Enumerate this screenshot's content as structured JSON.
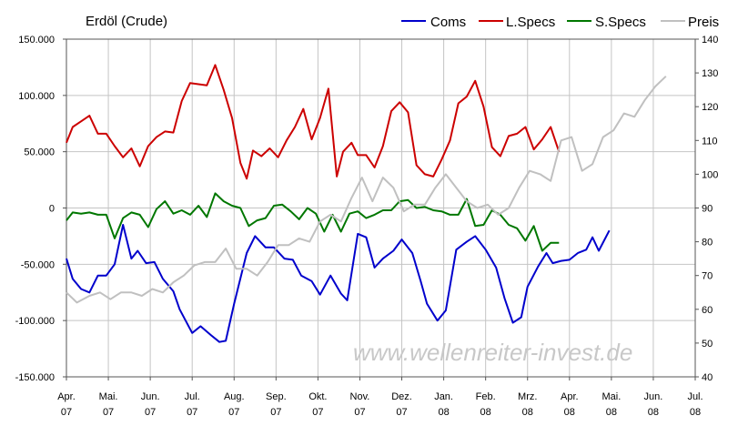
{
  "chart_data": {
    "type": "line",
    "title": "Erdöl (Crude)",
    "watermark": "www.wellenreiter-invest.de",
    "x_labels": [
      {
        "month": "Apr.",
        "year": "07"
      },
      {
        "month": "Mai.",
        "year": "07"
      },
      {
        "month": "Jun.",
        "year": "07"
      },
      {
        "month": "Jul.",
        "year": "07"
      },
      {
        "month": "Aug.",
        "year": "07"
      },
      {
        "month": "Sep.",
        "year": "07"
      },
      {
        "month": "Okt.",
        "year": "07"
      },
      {
        "month": "Nov.",
        "year": "07"
      },
      {
        "month": "Dez.",
        "year": "07"
      },
      {
        "month": "Jan.",
        "year": "08"
      },
      {
        "month": "Feb.",
        "year": "08"
      },
      {
        "month": "Mrz.",
        "year": "08"
      },
      {
        "month": "Apr.",
        "year": "08"
      },
      {
        "month": "Mai.",
        "year": "08"
      },
      {
        "month": "Jun.",
        "year": "08"
      },
      {
        "month": "Jul.",
        "year": "08"
      }
    ],
    "y_left": {
      "min": -150000,
      "max": 150000,
      "ticks": [
        -150000,
        -100000,
        -50000,
        0,
        50000,
        100000,
        150000
      ],
      "tick_labels": [
        "-150.000",
        "-100.000",
        "-50.000",
        "0",
        "50.000",
        "100.000",
        "150.000"
      ]
    },
    "y_right": {
      "min": 40,
      "max": 140,
      "ticks": [
        40,
        50,
        60,
        70,
        80,
        90,
        100,
        110,
        120,
        130,
        140
      ],
      "tick_labels": [
        "40",
        "50",
        "60",
        "70",
        "80",
        "90",
        "100",
        "110",
        "120",
        "130",
        "140"
      ]
    },
    "grid": true,
    "legend_position": "top-right",
    "series": [
      {
        "name": "Coms",
        "color": "#0000cc",
        "axis": "left",
        "values": [
          [
            0.0,
            -45000
          ],
          [
            0.15,
            -63000
          ],
          [
            0.35,
            -72000
          ],
          [
            0.55,
            -75000
          ],
          [
            0.75,
            -60000
          ],
          [
            0.95,
            -60000
          ],
          [
            1.15,
            -50000
          ],
          [
            1.35,
            -15000
          ],
          [
            1.55,
            -45000
          ],
          [
            1.7,
            -38000
          ],
          [
            1.9,
            -49000
          ],
          [
            2.1,
            -48000
          ],
          [
            2.3,
            -63000
          ],
          [
            2.55,
            -74000
          ],
          [
            2.7,
            -90000
          ],
          [
            3.0,
            -111000
          ],
          [
            3.2,
            -105000
          ],
          [
            3.45,
            -113000
          ],
          [
            3.65,
            -119000
          ],
          [
            3.8,
            -118000
          ],
          [
            4.0,
            -85000
          ],
          [
            4.3,
            -40000
          ],
          [
            4.5,
            -25000
          ],
          [
            4.75,
            -35000
          ],
          [
            4.95,
            -35000
          ],
          [
            5.2,
            -45000
          ],
          [
            5.4,
            -46000
          ],
          [
            5.6,
            -60000
          ],
          [
            5.85,
            -65000
          ],
          [
            6.05,
            -77000
          ],
          [
            6.3,
            -60000
          ],
          [
            6.55,
            -76000
          ],
          [
            6.7,
            -82000
          ],
          [
            6.95,
            -23000
          ],
          [
            7.15,
            -26000
          ],
          [
            7.35,
            -53000
          ],
          [
            7.55,
            -45000
          ],
          [
            7.8,
            -38000
          ],
          [
            8.0,
            -28000
          ],
          [
            8.25,
            -40000
          ],
          [
            8.45,
            -65000
          ],
          [
            8.6,
            -85000
          ],
          [
            8.85,
            -100000
          ],
          [
            9.05,
            -91000
          ],
          [
            9.3,
            -37000
          ],
          [
            9.55,
            -30000
          ],
          [
            9.75,
            -25000
          ],
          [
            10.0,
            -37000
          ],
          [
            10.25,
            -53000
          ],
          [
            10.45,
            -80000
          ],
          [
            10.65,
            -102000
          ],
          [
            10.85,
            -97000
          ],
          [
            11.0,
            -70000
          ],
          [
            11.25,
            -52000
          ],
          [
            11.45,
            -40000
          ],
          [
            11.6,
            -49000
          ],
          [
            11.8,
            -47000
          ],
          [
            12.0,
            -46000
          ],
          [
            12.2,
            -40000
          ],
          [
            12.4,
            -37000
          ],
          [
            12.55,
            -26000
          ],
          [
            12.7,
            -38000
          ],
          [
            12.95,
            -20000
          ]
        ]
      },
      {
        "name": "L.Specs",
        "color": "#cc0000",
        "axis": "left",
        "values": [
          [
            0.0,
            58000
          ],
          [
            0.15,
            72000
          ],
          [
            0.35,
            77000
          ],
          [
            0.55,
            82000
          ],
          [
            0.75,
            66000
          ],
          [
            0.95,
            66000
          ],
          [
            1.15,
            55000
          ],
          [
            1.35,
            45000
          ],
          [
            1.55,
            53000
          ],
          [
            1.75,
            37000
          ],
          [
            1.95,
            55000
          ],
          [
            2.15,
            63000
          ],
          [
            2.35,
            68000
          ],
          [
            2.55,
            67000
          ],
          [
            2.75,
            95000
          ],
          [
            2.95,
            111000
          ],
          [
            3.15,
            110000
          ],
          [
            3.35,
            109000
          ],
          [
            3.55,
            127000
          ],
          [
            3.75,
            105000
          ],
          [
            3.95,
            80000
          ],
          [
            4.15,
            40000
          ],
          [
            4.3,
            26000
          ],
          [
            4.45,
            51000
          ],
          [
            4.65,
            46000
          ],
          [
            4.85,
            53000
          ],
          [
            5.05,
            45000
          ],
          [
            5.25,
            60000
          ],
          [
            5.45,
            72000
          ],
          [
            5.65,
            88000
          ],
          [
            5.85,
            61000
          ],
          [
            6.05,
            80000
          ],
          [
            6.25,
            106000
          ],
          [
            6.45,
            28000
          ],
          [
            6.6,
            50000
          ],
          [
            6.8,
            58000
          ],
          [
            6.95,
            47000
          ],
          [
            7.15,
            47000
          ],
          [
            7.35,
            36000
          ],
          [
            7.55,
            55000
          ],
          [
            7.75,
            86000
          ],
          [
            7.95,
            94000
          ],
          [
            8.15,
            85000
          ],
          [
            8.35,
            38000
          ],
          [
            8.55,
            30000
          ],
          [
            8.75,
            28000
          ],
          [
            8.95,
            43000
          ],
          [
            9.15,
            60000
          ],
          [
            9.35,
            93000
          ],
          [
            9.55,
            99000
          ],
          [
            9.75,
            113000
          ],
          [
            9.95,
            90000
          ],
          [
            10.15,
            54000
          ],
          [
            10.35,
            46000
          ],
          [
            10.55,
            64000
          ],
          [
            10.75,
            66000
          ],
          [
            10.95,
            72000
          ],
          [
            11.15,
            52000
          ],
          [
            11.35,
            61000
          ],
          [
            11.55,
            72000
          ],
          [
            11.75,
            50000
          ]
        ]
      },
      {
        "name": "S.Specs",
        "color": "#007700",
        "axis": "left",
        "values": [
          [
            0.0,
            -11000
          ],
          [
            0.15,
            -4000
          ],
          [
            0.35,
            -5000
          ],
          [
            0.55,
            -4000
          ],
          [
            0.75,
            -6000
          ],
          [
            0.95,
            -6000
          ],
          [
            1.15,
            -27000
          ],
          [
            1.35,
            -9000
          ],
          [
            1.55,
            -4000
          ],
          [
            1.75,
            -6000
          ],
          [
            1.95,
            -17000
          ],
          [
            2.15,
            -1000
          ],
          [
            2.35,
            6000
          ],
          [
            2.55,
            -5000
          ],
          [
            2.75,
            -2000
          ],
          [
            2.95,
            -6000
          ],
          [
            3.15,
            2000
          ],
          [
            3.35,
            -8000
          ],
          [
            3.55,
            13000
          ],
          [
            3.75,
            6000
          ],
          [
            3.95,
            2000
          ],
          [
            4.15,
            0
          ],
          [
            4.35,
            -16000
          ],
          [
            4.55,
            -11000
          ],
          [
            4.75,
            -9000
          ],
          [
            4.95,
            2000
          ],
          [
            5.15,
            3000
          ],
          [
            5.35,
            -3000
          ],
          [
            5.55,
            -10000
          ],
          [
            5.75,
            0
          ],
          [
            5.95,
            -5000
          ],
          [
            6.15,
            -21000
          ],
          [
            6.35,
            -6000
          ],
          [
            6.55,
            -21000
          ],
          [
            6.75,
            -5000
          ],
          [
            6.95,
            -3000
          ],
          [
            7.15,
            -9000
          ],
          [
            7.35,
            -6000
          ],
          [
            7.55,
            -2000
          ],
          [
            7.75,
            -2000
          ],
          [
            7.95,
            6000
          ],
          [
            8.15,
            7000
          ],
          [
            8.35,
            0
          ],
          [
            8.55,
            1000
          ],
          [
            8.75,
            -2000
          ],
          [
            8.95,
            -3000
          ],
          [
            9.15,
            -6000
          ],
          [
            9.35,
            -6000
          ],
          [
            9.55,
            8000
          ],
          [
            9.75,
            -16000
          ],
          [
            9.95,
            -15000
          ],
          [
            10.15,
            -2000
          ],
          [
            10.35,
            -6000
          ],
          [
            10.55,
            -15000
          ],
          [
            10.75,
            -18000
          ],
          [
            10.95,
            -29000
          ],
          [
            11.15,
            -16000
          ],
          [
            11.35,
            -38000
          ],
          [
            11.55,
            -31000
          ],
          [
            11.75,
            -31000
          ]
        ]
      },
      {
        "name": "Preis",
        "color": "#c0c0c0",
        "axis": "right",
        "values": [
          [
            0.0,
            65
          ],
          [
            0.25,
            62
          ],
          [
            0.55,
            64
          ],
          [
            0.8,
            65
          ],
          [
            1.05,
            63
          ],
          [
            1.3,
            65
          ],
          [
            1.55,
            65
          ],
          [
            1.8,
            64
          ],
          [
            2.05,
            66
          ],
          [
            2.3,
            65
          ],
          [
            2.55,
            68
          ],
          [
            2.8,
            70
          ],
          [
            3.05,
            73
          ],
          [
            3.3,
            74
          ],
          [
            3.55,
            74
          ],
          [
            3.8,
            78
          ],
          [
            4.05,
            72
          ],
          [
            4.3,
            72
          ],
          [
            4.55,
            70
          ],
          [
            4.8,
            74
          ],
          [
            5.05,
            79
          ],
          [
            5.3,
            79
          ],
          [
            5.55,
            81
          ],
          [
            5.8,
            80
          ],
          [
            6.05,
            86
          ],
          [
            6.3,
            88
          ],
          [
            6.55,
            86
          ],
          [
            6.8,
            93
          ],
          [
            7.05,
            99
          ],
          [
            7.3,
            92
          ],
          [
            7.55,
            99
          ],
          [
            7.8,
            96
          ],
          [
            8.05,
            89
          ],
          [
            8.3,
            91
          ],
          [
            8.55,
            91
          ],
          [
            8.8,
            96
          ],
          [
            9.05,
            100
          ],
          [
            9.3,
            96
          ],
          [
            9.55,
            92
          ],
          [
            9.8,
            90
          ],
          [
            10.05,
            91
          ],
          [
            10.3,
            88
          ],
          [
            10.55,
            90
          ],
          [
            10.8,
            96
          ],
          [
            11.05,
            101
          ],
          [
            11.3,
            100
          ],
          [
            11.55,
            98
          ],
          [
            11.8,
            110
          ],
          [
            12.05,
            111
          ],
          [
            12.3,
            101
          ],
          [
            12.55,
            103
          ],
          [
            12.8,
            111
          ],
          [
            13.05,
            113
          ],
          [
            13.3,
            118
          ],
          [
            13.55,
            117
          ],
          [
            13.8,
            122
          ],
          [
            14.05,
            126
          ],
          [
            14.3,
            129
          ]
        ]
      }
    ]
  }
}
